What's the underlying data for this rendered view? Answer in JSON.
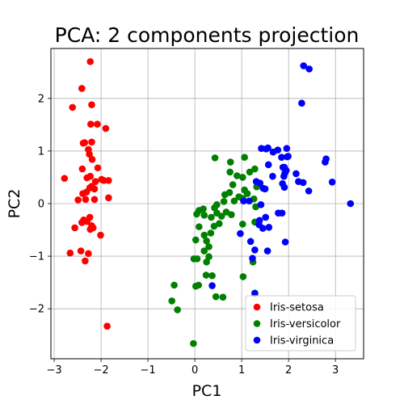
{
  "chart_data": {
    "type": "scatter",
    "title": "PCA: 2 components projection",
    "xlabel": "PC1",
    "ylabel": "PC2",
    "xlim": [
      -3.07,
      3.6
    ],
    "ylim": [
      -2.95,
      2.95
    ],
    "xticks": [
      -3,
      -2,
      -1,
      0,
      1,
      2,
      3
    ],
    "yticks": [
      -2,
      -1,
      0,
      1,
      2
    ],
    "grid": true,
    "legend_position": "lower-right",
    "series": [
      {
        "name": "Iris-setosa",
        "color": "#ff0000",
        "points": [
          [
            -2.23,
            2.7
          ],
          [
            -2.41,
            2.19
          ],
          [
            -2.61,
            1.83
          ],
          [
            -2.2,
            1.88
          ],
          [
            -1.9,
            1.43
          ],
          [
            -2.22,
            1.51
          ],
          [
            -2.08,
            1.51
          ],
          [
            -2.38,
            1.15
          ],
          [
            -2.35,
            1.16
          ],
          [
            -2.2,
            1.17
          ],
          [
            -2.27,
            1.03
          ],
          [
            -2.25,
            0.94
          ],
          [
            -2.19,
            0.84
          ],
          [
            -2.4,
            0.66
          ],
          [
            -2.07,
            0.68
          ],
          [
            -2.3,
            0.49
          ],
          [
            -2.23,
            0.52
          ],
          [
            -1.99,
            0.46
          ],
          [
            -1.94,
            0.44
          ],
          [
            -1.84,
            0.44
          ],
          [
            -2.78,
            0.48
          ],
          [
            -2.12,
            0.42
          ],
          [
            -2.2,
            0.33
          ],
          [
            -2.24,
            0.3
          ],
          [
            -2.14,
            0.28
          ],
          [
            -2.31,
            0.22
          ],
          [
            -2.39,
            0.19
          ],
          [
            -2.49,
            0.07
          ],
          [
            -2.33,
            0.08
          ],
          [
            -1.84,
            0.11
          ],
          [
            -2.14,
            0.08
          ],
          [
            -2.24,
            -0.26
          ],
          [
            -2.37,
            -0.31
          ],
          [
            -2.41,
            -0.36
          ],
          [
            -2.3,
            -0.34
          ],
          [
            -2.2,
            -0.42
          ],
          [
            -2.56,
            -0.46
          ],
          [
            -2.17,
            -0.46
          ],
          [
            -2.23,
            -0.49
          ],
          [
            -2.01,
            -0.6
          ],
          [
            -2.43,
            -0.9
          ],
          [
            -2.66,
            -0.94
          ],
          [
            -2.34,
            -1.09
          ],
          [
            -2.27,
            -0.95
          ],
          [
            -1.87,
            -2.33
          ]
        ]
      },
      {
        "name": "Iris-versicolor",
        "color": "#008000",
        "points": [
          [
            -0.03,
            -2.66
          ],
          [
            -0.37,
            -2.02
          ],
          [
            -0.49,
            -1.85
          ],
          [
            -0.44,
            -1.55
          ],
          [
            0.02,
            -1.57
          ],
          [
            0.08,
            -1.55
          ],
          [
            0.24,
            -1.36
          ],
          [
            0.37,
            -1.37
          ],
          [
            -0.02,
            -1.05
          ],
          [
            0.05,
            -1.05
          ],
          [
            0.25,
            -1.11
          ],
          [
            0.3,
            -1.01
          ],
          [
            0.2,
            -0.9
          ],
          [
            0.3,
            -0.82
          ],
          [
            0.25,
            -0.71
          ],
          [
            0.02,
            -0.69
          ],
          [
            0.34,
            -0.56
          ],
          [
            0.2,
            -0.6
          ],
          [
            0.09,
            -0.44
          ],
          [
            0.41,
            -0.43
          ],
          [
            0.52,
            -0.38
          ],
          [
            0.57,
            -0.24
          ],
          [
            0.35,
            -0.26
          ],
          [
            0.2,
            -0.22
          ],
          [
            0.47,
            -0.18
          ],
          [
            0.67,
            -0.16
          ],
          [
            0.78,
            -0.21
          ],
          [
            0.04,
            -0.2
          ],
          [
            0.09,
            -0.13
          ],
          [
            0.18,
            -0.1
          ],
          [
            0.42,
            -0.08
          ],
          [
            0.47,
            -0.02
          ],
          [
            0.62,
            0.04
          ],
          [
            0.84,
            0.05
          ],
          [
            0.64,
            0.17
          ],
          [
            0.74,
            0.21
          ],
          [
            0.94,
            0.13
          ],
          [
            1.02,
            0.1
          ],
          [
            1.26,
            0.09
          ],
          [
            1.12,
            0.19
          ],
          [
            1.06,
            0.26
          ],
          [
            0.81,
            0.36
          ],
          [
            0.9,
            0.53
          ],
          [
            1.02,
            0.5
          ],
          [
            1.17,
            0.6
          ],
          [
            1.28,
            0.66
          ],
          [
            0.75,
            0.6
          ],
          [
            1.06,
            0.88
          ],
          [
            0.76,
            0.79
          ],
          [
            0.43,
            0.87
          ],
          [
            1.3,
            -0.06
          ],
          [
            1.28,
            -0.35
          ],
          [
            1.02,
            -0.39
          ],
          [
            1.32,
            0.32
          ],
          [
            1.24,
            -1.11
          ],
          [
            1.28,
            -1.7
          ],
          [
            1.03,
            -1.39
          ],
          [
            0.45,
            -1.77
          ],
          [
            0.6,
            -1.78
          ]
        ]
      },
      {
        "name": "Iris-virginica",
        "color": "#0000ff",
        "points": [
          [
            2.32,
            2.62
          ],
          [
            2.44,
            2.56
          ],
          [
            2.28,
            1.91
          ],
          [
            1.56,
            1.06
          ],
          [
            1.52,
            1.04
          ],
          [
            1.77,
            1.02
          ],
          [
            1.67,
            0.98
          ],
          [
            1.42,
            1.05
          ],
          [
            1.96,
            1.05
          ],
          [
            1.99,
            0.9
          ],
          [
            1.97,
            0.89
          ],
          [
            1.85,
            0.88
          ],
          [
            2.8,
            0.85
          ],
          [
            2.78,
            0.79
          ],
          [
            1.57,
            0.74
          ],
          [
            1.88,
            0.69
          ],
          [
            1.91,
            0.69
          ],
          [
            1.95,
            0.63
          ],
          [
            1.92,
            0.58
          ],
          [
            1.9,
            0.52
          ],
          [
            2.16,
            0.57
          ],
          [
            1.66,
            0.52
          ],
          [
            1.87,
            0.38
          ],
          [
            1.91,
            0.31
          ],
          [
            2.21,
            0.42
          ],
          [
            2.31,
            0.4
          ],
          [
            2.93,
            0.41
          ],
          [
            2.43,
            0.24
          ],
          [
            1.39,
            0.39
          ],
          [
            1.31,
            0.42
          ],
          [
            1.46,
            0.29
          ],
          [
            1.5,
            0.28
          ],
          [
            1.16,
            0.05
          ],
          [
            1.04,
            0.05
          ],
          [
            1.41,
            -0.02
          ],
          [
            1.78,
            -0.18
          ],
          [
            1.86,
            -0.18
          ],
          [
            1.51,
            -0.26
          ],
          [
            1.37,
            -0.4
          ],
          [
            1.58,
            -0.45
          ],
          [
            1.45,
            -0.47
          ],
          [
            0.97,
            -0.57
          ],
          [
            1.93,
            -0.73
          ],
          [
            1.55,
            -0.9
          ],
          [
            1.19,
            -0.72
          ],
          [
            1.28,
            -0.88
          ],
          [
            1.23,
            -1.04
          ],
          [
            1.38,
            -0.32
          ],
          [
            3.32,
            0.0
          ],
          [
            0.37,
            -1.56
          ],
          [
            1.28,
            -1.71
          ]
        ]
      }
    ]
  }
}
